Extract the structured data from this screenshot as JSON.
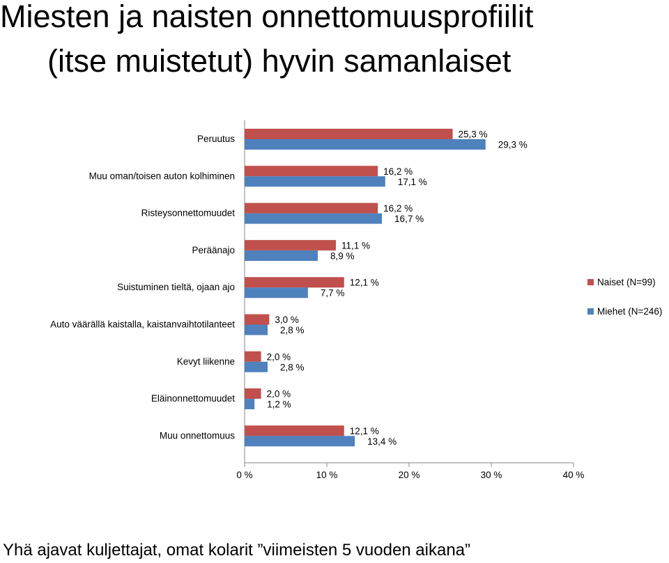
{
  "page": {
    "title_line1": "Miesten ja naisten onnettomuusprofiilit",
    "title_line2": "(itse muistetut) hyvin samanlaiset",
    "footer": "Yhä ajavat kuljettajat,  omat kolarit ”viimeisten 5 vuoden aikana”"
  },
  "chart_data": {
    "type": "bar",
    "orientation": "horizontal",
    "categories": [
      "Peruutus",
      "Muu oman/toisen auton kolhiminen",
      "Risteysonnettomuudet",
      "Peräänajo",
      "Suistuminen tieltä, ojaan ajo",
      "Auto väärällä kaistalla, kaistanvaihtotilanteet",
      "Kevyt liikenne",
      "Eläinonnettomuudet",
      "Muu onnettomuus"
    ],
    "series": [
      {
        "name": "Naiset (N=99)",
        "color": "#c0504d",
        "values": [
          25.3,
          16.2,
          16.2,
          11.1,
          12.1,
          3.0,
          2.0,
          2.0,
          12.1
        ],
        "labels": [
          "25,3 %",
          "16,2 %",
          "16,2 %",
          "11,1 %",
          "12,1 %",
          "3,0 %",
          "2,0 %",
          "2,0 %",
          "12,1 %"
        ]
      },
      {
        "name": "Miehet (N=246)",
        "color": "#4f81bd",
        "values": [
          29.3,
          17.1,
          16.7,
          8.9,
          7.7,
          2.8,
          2.8,
          1.2,
          13.4
        ],
        "labels": [
          "29,3 %",
          "17,1 %",
          "16,7 %",
          "8,9 %",
          "7,7 %",
          "2,8 %",
          "2,8 %",
          "1,2 %",
          "13,4 %"
        ]
      }
    ],
    "xlim": [
      0,
      40
    ],
    "xticks": [
      0,
      10,
      20,
      30,
      40
    ],
    "xtick_labels": [
      "0 %",
      "10 %",
      "20 %",
      "30 %",
      "40 %"
    ],
    "legend_position": "right",
    "grid": false
  }
}
